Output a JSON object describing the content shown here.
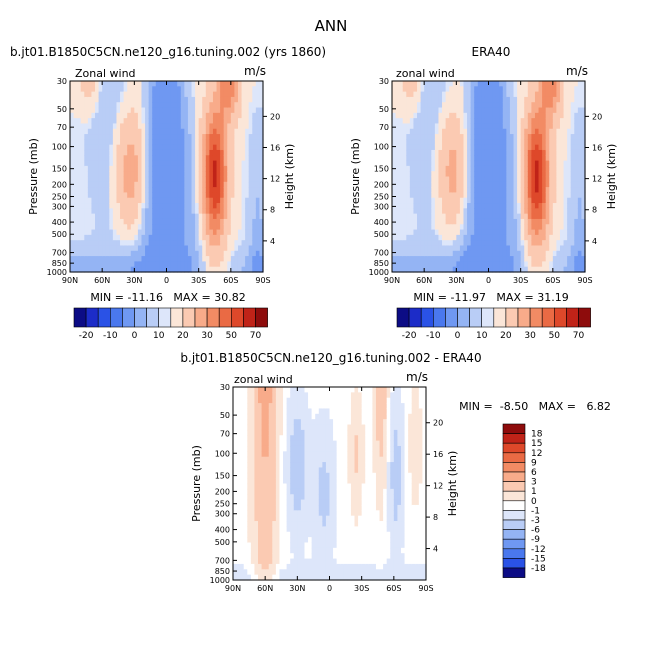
{
  "page": {
    "title": "ANN"
  },
  "colors": {
    "neg": [
      "#0c0c85",
      "#1c2cc8",
      "#2a52e6",
      "#4a78ee",
      "#6f98f2",
      "#94b4f4",
      "#b9cdf6",
      "#dde6fa"
    ],
    "pos": [
      "#fbe6d8",
      "#fbcab2",
      "#f8ab8a",
      "#f28b64",
      "#ea6a44",
      "#de482a",
      "#c02318",
      "#8e0c0c"
    ],
    "zero": "#ffffff"
  },
  "chart_data": [
    {
      "type": "contour",
      "title": "b.jt01.B1850C5CN.ne120_g16.tuning.002 (yrs 1860)",
      "left_label": "Zonal wind",
      "right_label": "m/s",
      "xlabel": "",
      "ylabel": "Pressure (mb)",
      "y2label": "Height (km)",
      "x_ticks": [
        "90N",
        "60N",
        "30N",
        "0",
        "30S",
        "60S",
        "90S"
      ],
      "y_ticks": [
        "30",
        "50",
        "70",
        "100",
        "150",
        "200",
        "250",
        "300",
        "400",
        "500",
        "700",
        "850",
        "1000"
      ],
      "height_ticks": [
        "20",
        "16",
        "12",
        "8",
        "4"
      ],
      "stats": "MIN = -11.16   MAX = 30.82",
      "min": -11.16,
      "max": 30.82,
      "colorbar_labels": [
        "-20",
        "-10",
        "0",
        "10",
        "20",
        "30",
        "50",
        "70"
      ],
      "colorbar_levels": [
        -25,
        -20,
        -15,
        -10,
        -5,
        0,
        5,
        10,
        15,
        20,
        25,
        30,
        40,
        50,
        60,
        70
      ]
    },
    {
      "type": "contour",
      "title": "ERA40",
      "left_label": "zonal wind",
      "right_label": "m/s",
      "xlabel": "",
      "ylabel": "Pressure (mb)",
      "y2label": "Height (km)",
      "x_ticks": [
        "90N",
        "60N",
        "30N",
        "0",
        "30S",
        "60S",
        "90S"
      ],
      "y_ticks": [
        "30",
        "50",
        "70",
        "100",
        "150",
        "200",
        "250",
        "300",
        "400",
        "500",
        "700",
        "850",
        "1000"
      ],
      "height_ticks": [
        "20",
        "16",
        "12",
        "8",
        "4"
      ],
      "stats": "MIN = -11.97   MAX = 31.19",
      "min": -11.97,
      "max": 31.19,
      "colorbar_labels": [
        "-20",
        "-10",
        "0",
        "10",
        "20",
        "30",
        "50",
        "70"
      ],
      "colorbar_levels": [
        -25,
        -20,
        -15,
        -10,
        -5,
        0,
        5,
        10,
        15,
        20,
        25,
        30,
        40,
        50,
        60,
        70
      ]
    },
    {
      "type": "contour",
      "title": "b.jt01.B1850C5CN.ne120_g16.tuning.002 - ERA40",
      "left_label": "zonal wind",
      "right_label": "m/s",
      "xlabel": "",
      "ylabel": "Pressure (mb)",
      "y2label": "Height (km)",
      "x_ticks": [
        "90N",
        "60N",
        "30N",
        "0",
        "30S",
        "60S",
        "90S"
      ],
      "y_ticks": [
        "30",
        "50",
        "70",
        "100",
        "150",
        "200",
        "250",
        "300",
        "400",
        "500",
        "700",
        "850",
        "1000"
      ],
      "height_ticks": [
        "20",
        "16",
        "12",
        "8",
        "4"
      ],
      "stats": "MIN =  -8.50   MAX =   6.82",
      "min": -8.5,
      "max": 6.82,
      "colorbar_labels": [
        "18",
        "15",
        "12",
        "9",
        "6",
        "3",
        "1",
        "0",
        "-1",
        "-3",
        "-6",
        "-9",
        "-12",
        "-15",
        "-18"
      ],
      "colorbar_levels": [
        18,
        15,
        12,
        9,
        6,
        3,
        1,
        0,
        -1,
        -3,
        -6,
        -9,
        -12,
        -15,
        -18
      ]
    }
  ]
}
